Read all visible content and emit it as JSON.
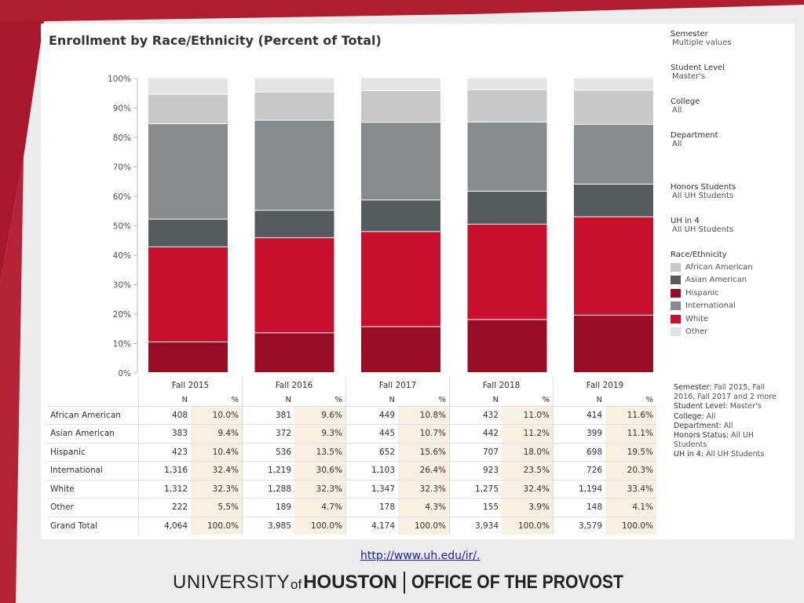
{
  "url": "http://www.uh.edu/ir/.",
  "logo": {
    "university": "UNIVERSITY",
    "of": "of",
    "houston": "HOUSTON",
    "provost": "OFFICE OF THE PROVOST"
  },
  "colors": {
    "African American": "#c8c8c8",
    "Asian American": "#555a5c",
    "Hispanic": "#980d24",
    "International": "#888b8d",
    "White": "#c8102e",
    "Other": "#e3e3e3"
  },
  "chart_data": {
    "type": "bar",
    "stacked": true,
    "title": "Enrollment by Race/Ethnicity (Percent of Total)",
    "categories": [
      "Fall 2015",
      "Fall 2016",
      "Fall 2017",
      "Fall 2018",
      "Fall 2019"
    ],
    "yticks": [
      "100%",
      "90%",
      "80%",
      "70%",
      "60%",
      "50%",
      "40%",
      "30%",
      "20%",
      "10%",
      "0%"
    ],
    "ylim": [
      0,
      100
    ],
    "stack_order": [
      "Hispanic",
      "White",
      "Asian American",
      "International",
      "African American",
      "Other"
    ],
    "series": [
      {
        "name": "African American",
        "values": [
          10.0,
          9.6,
          10.8,
          11.0,
          11.6
        ]
      },
      {
        "name": "Asian American",
        "values": [
          9.4,
          9.3,
          10.7,
          11.2,
          11.1
        ]
      },
      {
        "name": "Hispanic",
        "values": [
          10.4,
          13.5,
          15.6,
          18.0,
          19.5
        ]
      },
      {
        "name": "International",
        "values": [
          32.4,
          30.6,
          26.4,
          23.5,
          20.3
        ]
      },
      {
        "name": "White",
        "values": [
          32.3,
          32.3,
          32.3,
          32.4,
          33.4
        ]
      },
      {
        "name": "Other",
        "values": [
          5.5,
          4.7,
          4.3,
          3.9,
          4.1
        ]
      }
    ]
  },
  "filters": [
    {
      "label": "Semester",
      "value": "Multiple values"
    },
    {
      "label": "Student Level",
      "value": "Master's"
    },
    {
      "label": "College",
      "value": "All"
    },
    {
      "label": "Department",
      "value": "All"
    },
    {
      "label": "Honors Students",
      "value": "All UH Students"
    },
    {
      "label": "UH in 4",
      "value": "All UH Students"
    }
  ],
  "legend": {
    "title": "Race/Ethnicity",
    "items": [
      "African American",
      "Asian American",
      "Hispanic",
      "International",
      "White",
      "Other"
    ]
  },
  "table": {
    "n_header": "N",
    "pct_header": "%",
    "semesters": [
      "Fall 2015",
      "Fall 2016",
      "Fall 2017",
      "Fall 2018",
      "Fall 2019"
    ],
    "rows": [
      {
        "label": "African American",
        "cells": [
          [
            "408",
            "10.0%"
          ],
          [
            "381",
            "9.6%"
          ],
          [
            "449",
            "10.8%"
          ],
          [
            "432",
            "11.0%"
          ],
          [
            "414",
            "11.6%"
          ]
        ]
      },
      {
        "label": "Asian American",
        "cells": [
          [
            "383",
            "9.4%"
          ],
          [
            "372",
            "9.3%"
          ],
          [
            "445",
            "10.7%"
          ],
          [
            "442",
            "11.2%"
          ],
          [
            "399",
            "11.1%"
          ]
        ]
      },
      {
        "label": "Hispanic",
        "cells": [
          [
            "423",
            "10.4%"
          ],
          [
            "536",
            "13.5%"
          ],
          [
            "652",
            "15.6%"
          ],
          [
            "707",
            "18.0%"
          ],
          [
            "698",
            "19.5%"
          ]
        ]
      },
      {
        "label": "International",
        "cells": [
          [
            "1,316",
            "32.4%"
          ],
          [
            "1,219",
            "30.6%"
          ],
          [
            "1,103",
            "26.4%"
          ],
          [
            "923",
            "23.5%"
          ],
          [
            "726",
            "20.3%"
          ]
        ]
      },
      {
        "label": "White",
        "cells": [
          [
            "1,312",
            "32.3%"
          ],
          [
            "1,288",
            "32.3%"
          ],
          [
            "1,347",
            "32.3%"
          ],
          [
            "1,275",
            "32.4%"
          ],
          [
            "1,194",
            "33.4%"
          ]
        ]
      },
      {
        "label": "Other",
        "cells": [
          [
            "222",
            "5.5%"
          ],
          [
            "189",
            "4.7%"
          ],
          [
            "178",
            "4.3%"
          ],
          [
            "155",
            "3.9%"
          ],
          [
            "148",
            "4.1%"
          ]
        ]
      },
      {
        "label": "Grand Total",
        "cells": [
          [
            "4,064",
            "100.0%"
          ],
          [
            "3,985",
            "100.0%"
          ],
          [
            "4,174",
            "100.0%"
          ],
          [
            "3,934",
            "100.0%"
          ],
          [
            "3,579",
            "100.0%"
          ]
        ]
      }
    ]
  },
  "note": [
    {
      "k": "Semester:",
      "v": "Fall 2015, Fall 2016, Fall 2017 and 2 more"
    },
    {
      "k": "Student Level:",
      "v": "Master's"
    },
    {
      "k": "College:",
      "v": "All"
    },
    {
      "k": "Department:",
      "v": "All"
    },
    {
      "k": "Honors Status:",
      "v": "All UH Students"
    },
    {
      "k": "UH in 4:",
      "v": "All UH Students"
    }
  ]
}
